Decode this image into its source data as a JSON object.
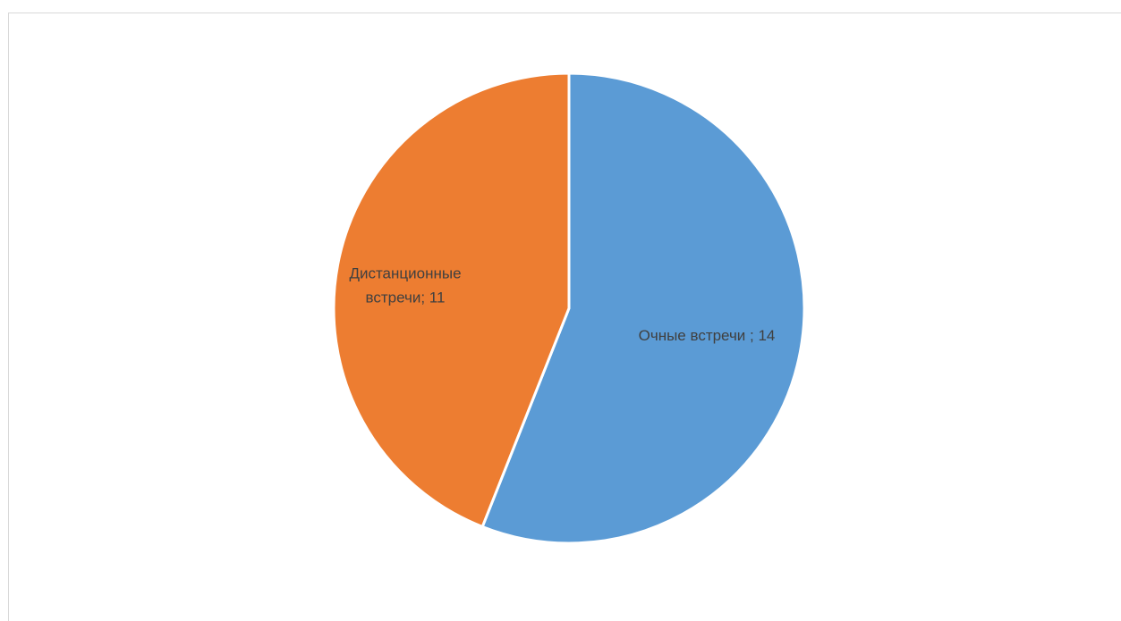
{
  "document": {
    "top_text": ""
  },
  "chart_data": {
    "type": "pie",
    "title": "",
    "categories": [
      "Очные встречи ",
      "Дистанционные встречи"
    ],
    "values": [
      14,
      11
    ],
    "colors": [
      "#5b9bd5",
      "#ed7d31"
    ],
    "labels": [
      [
        "Очные встречи ; 14"
      ],
      [
        "Дистанционные",
        "встречи; 11"
      ]
    ],
    "start_angle_deg": 0,
    "direction": "clockwise",
    "legend": "none"
  }
}
